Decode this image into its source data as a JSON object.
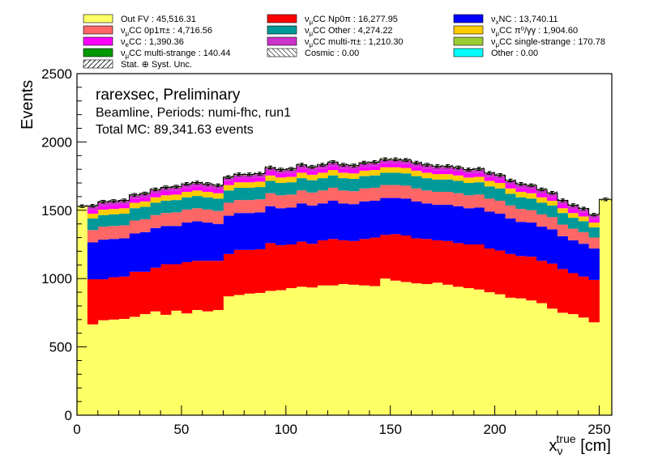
{
  "legend": [
    {
      "label": "Out FV : 45,516.31",
      "color": "#ffff66",
      "pattern": "solid"
    },
    {
      "label": "ν_μCC Np0π : 16,277.95",
      "color": "#ff0000",
      "pattern": "solid"
    },
    {
      "label": "ν_xNC : 13,740.11",
      "color": "#0000ff",
      "pattern": "solid"
    },
    {
      "label": "ν_μCC 0p1π± : 4,716.56",
      "color": "#ff6666",
      "pattern": "solid"
    },
    {
      "label": "ν_μCC Other : 4,274.22",
      "color": "#009999",
      "pattern": "solid"
    },
    {
      "label": "ν_μCC π⁰/γγ : 1,904.60",
      "color": "#ffcc00",
      "pattern": "solid"
    },
    {
      "label": "ν_eCC : 1,390.36",
      "color": "#ff00ff",
      "pattern": "solid"
    },
    {
      "label": "ν_μCC multi-π± : 1,210.30",
      "color": "#cc33cc",
      "pattern": "solid"
    },
    {
      "label": "ν_μCC single-strange : 170.78",
      "color": "#99cc33",
      "pattern": "solid"
    },
    {
      "label": "ν_μCC multi-strange : 140.44",
      "color": "#009900",
      "pattern": "solid"
    },
    {
      "label": "Cosmic : 0.00",
      "color": "#ffffff",
      "pattern": "hatch-back"
    },
    {
      "label": "Other : 0.00",
      "color": "#00ffff",
      "pattern": "solid"
    },
    {
      "label": "Stat. ⊕ Syst. Unc.",
      "color": "#ffffff",
      "pattern": "hatch"
    }
  ],
  "annotations": {
    "line1": "rarexsec, Preliminary",
    "line2": "Beamline, Periods: numi-fhc, run1",
    "line3": "Total MC: 89,341.63 events"
  },
  "chart_data": {
    "type": "stacked-histogram",
    "xlabel": "x_ν^true [cm]",
    "ylabel": "Events",
    "xlim": [
      0,
      256
    ],
    "ylim": [
      0,
      2500
    ],
    "xticks": [
      0,
      50,
      100,
      150,
      200,
      250
    ],
    "yticks": [
      0,
      500,
      1000,
      1500,
      2000,
      2500
    ],
    "bin_edges": [
      0,
      5,
      10,
      15,
      20,
      25,
      30,
      35,
      40,
      45,
      50,
      55,
      60,
      65,
      70,
      75,
      80,
      85,
      90,
      95,
      100,
      105,
      110,
      115,
      120,
      125,
      130,
      135,
      140,
      145,
      150,
      155,
      160,
      165,
      170,
      175,
      180,
      185,
      190,
      195,
      200,
      205,
      210,
      215,
      220,
      225,
      230,
      235,
      240,
      245,
      250,
      256
    ],
    "series": [
      {
        "name": "Out FV",
        "color": "#ffff66",
        "values": [
          1530,
          665,
          695,
          700,
          705,
          720,
          740,
          760,
          735,
          765,
          745,
          770,
          760,
          770,
          870,
          880,
          890,
          895,
          910,
          915,
          930,
          940,
          935,
          950,
          950,
          960,
          955,
          950,
          945,
          1000,
          985,
          975,
          965,
          960,
          970,
          955,
          940,
          930,
          920,
          900,
          885,
          860,
          855,
          840,
          820,
          780,
          750,
          740,
          715,
          680,
          1580
        ]
      },
      {
        "name": "ν_μCC Np0π",
        "color": "#ff0000",
        "values": [
          0,
          330,
          300,
          310,
          310,
          330,
          310,
          320,
          370,
          340,
          375,
          360,
          370,
          360,
          310,
          330,
          320,
          320,
          350,
          330,
          320,
          330,
          320,
          330,
          340,
          320,
          320,
          340,
          355,
          320,
          340,
          340,
          330,
          330,
          310,
          320,
          320,
          320,
          330,
          320,
          320,
          320,
          310,
          320,
          310,
          330,
          320,
          300,
          300,
          310,
          0
        ]
      },
      {
        "name": "ν_xNC",
        "color": "#0000ff",
        "values": [
          0,
          270,
          290,
          280,
          280,
          280,
          290,
          290,
          280,
          280,
          290,
          290,
          280,
          270,
          280,
          270,
          270,
          270,
          270,
          270,
          270,
          280,
          280,
          270,
          280,
          270,
          270,
          275,
          270,
          270,
          265,
          270,
          270,
          260,
          260,
          265,
          270,
          265,
          270,
          270,
          270,
          260,
          250,
          250,
          250,
          250,
          240,
          240,
          240,
          230,
          0
        ]
      },
      {
        "name": "ν_μCC 0p1π±",
        "color": "#ff6666",
        "values": [
          0,
          90,
          95,
          95,
          95,
          95,
          95,
          95,
          95,
          100,
          95,
          95,
          95,
          95,
          95,
          95,
          95,
          95,
          95,
          95,
          95,
          95,
          95,
          95,
          95,
          95,
          95,
          95,
          95,
          95,
          95,
          95,
          95,
          95,
          95,
          95,
          95,
          95,
          95,
          95,
          95,
          95,
          95,
          90,
          90,
          90,
          85,
          85,
          85,
          80,
          0
        ]
      },
      {
        "name": "ν_μCC Other",
        "color": "#009999",
        "values": [
          0,
          85,
          85,
          85,
          85,
          90,
          90,
          90,
          90,
          90,
          90,
          90,
          90,
          90,
          90,
          90,
          90,
          90,
          90,
          90,
          90,
          90,
          90,
          90,
          90,
          90,
          90,
          90,
          90,
          90,
          90,
          90,
          90,
          90,
          90,
          90,
          90,
          90,
          90,
          90,
          90,
          85,
          85,
          85,
          85,
          85,
          85,
          80,
          80,
          75,
          0
        ]
      },
      {
        "name": "ν_μCC π⁰/γγ",
        "color": "#ffcc00",
        "values": [
          0,
          35,
          40,
          40,
          40,
          40,
          40,
          40,
          40,
          40,
          40,
          40,
          40,
          40,
          40,
          40,
          40,
          40,
          40,
          40,
          40,
          40,
          40,
          40,
          40,
          40,
          40,
          40,
          40,
          40,
          40,
          40,
          40,
          40,
          40,
          40,
          40,
          40,
          40,
          40,
          40,
          40,
          40,
          40,
          40,
          35,
          35,
          35,
          35,
          35,
          0
        ]
      },
      {
        "name": "ν_eCC",
        "color": "#ff00ff",
        "values": [
          0,
          28,
          28,
          28,
          28,
          28,
          28,
          28,
          28,
          28,
          28,
          28,
          28,
          28,
          28,
          28,
          28,
          28,
          28,
          28,
          28,
          28,
          28,
          28,
          28,
          28,
          28,
          28,
          28,
          28,
          28,
          28,
          28,
          28,
          28,
          28,
          28,
          28,
          28,
          28,
          28,
          28,
          28,
          28,
          28,
          28,
          28,
          28,
          28,
          28,
          0
        ]
      },
      {
        "name": "ν_μCC multi-π±",
        "color": "#cc33cc",
        "values": [
          0,
          24,
          24,
          24,
          24,
          24,
          24,
          24,
          24,
          24,
          24,
          24,
          24,
          24,
          24,
          24,
          24,
          24,
          24,
          24,
          24,
          24,
          24,
          24,
          24,
          24,
          24,
          24,
          24,
          24,
          24,
          24,
          24,
          24,
          24,
          24,
          24,
          24,
          24,
          24,
          24,
          24,
          24,
          24,
          24,
          24,
          24,
          24,
          24,
          24,
          0
        ]
      },
      {
        "name": "ν_μCC single-strange",
        "color": "#99cc33",
        "values": [
          0,
          3,
          3,
          3,
          3,
          3,
          3,
          3,
          3,
          3,
          3,
          3,
          3,
          3,
          3,
          3,
          3,
          3,
          3,
          3,
          3,
          3,
          3,
          3,
          3,
          3,
          3,
          3,
          3,
          3,
          3,
          3,
          3,
          3,
          3,
          3,
          3,
          3,
          3,
          3,
          3,
          3,
          3,
          3,
          3,
          3,
          3,
          3,
          3,
          3,
          0
        ]
      },
      {
        "name": "ν_μCC multi-strange",
        "color": "#009900",
        "values": [
          0,
          3,
          3,
          3,
          3,
          3,
          3,
          3,
          3,
          3,
          3,
          3,
          3,
          3,
          3,
          3,
          3,
          3,
          3,
          3,
          3,
          3,
          3,
          3,
          3,
          3,
          3,
          3,
          3,
          3,
          3,
          3,
          3,
          3,
          3,
          3,
          3,
          3,
          3,
          3,
          3,
          3,
          3,
          3,
          3,
          3,
          3,
          3,
          3,
          3,
          0
        ]
      }
    ]
  }
}
